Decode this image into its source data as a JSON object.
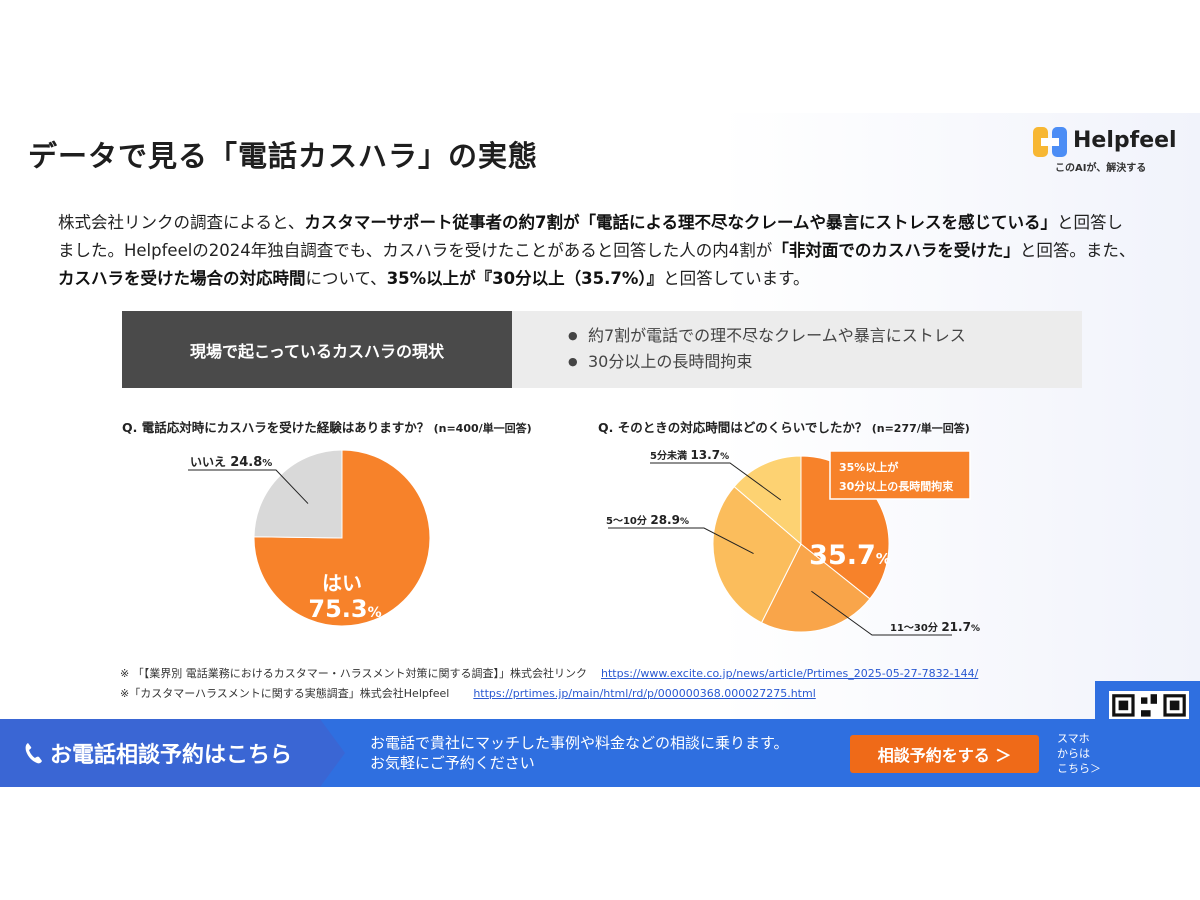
{
  "title": "データで見る「電話カスハラ」の実態",
  "logo": {
    "name": "Helpfeel",
    "tagline": "このAIが、解決する"
  },
  "intro": [
    {
      "text": "株式会社リンクの調査によると、",
      "bold": false
    },
    {
      "text": "カスタマーサポート従事者の約7割が「電話による理不尽なクレームや暴言にストレスを感じている」",
      "bold": true
    },
    {
      "text": "と回答しました。Helpfeelの2024年独自調査でも、カスハラを受けたことがあると回答した人の内4割が",
      "bold": false
    },
    {
      "text": "「非対面でのカスハラを受けた」",
      "bold": true
    },
    {
      "text": "と回答。また、",
      "bold": false
    },
    {
      "text": "カスハラを受けた場合の対応時間",
      "bold": true
    },
    {
      "text": "について、",
      "bold": false
    },
    {
      "text": "35%以上が『30分以上（35.7%）』",
      "bold": true
    },
    {
      "text": "と回答しています。",
      "bold": false
    }
  ],
  "status": {
    "label": "現場で起こっているカスハラの現状",
    "items": [
      "約7割が電話での理不尽なクレームや暴言にストレス",
      "30分以上の長時間拘束"
    ]
  },
  "questions": {
    "q1": {
      "text": "Q. 電話応対時にカスハラを受けた経験はありますか？",
      "n": "(n=400/単一回答)"
    },
    "q2": {
      "text": "Q. そのときの対応時間はどのくらいでしたか？",
      "n": "(n=277/単一回答)"
    }
  },
  "chart_data": [
    {
      "type": "pie",
      "slices": [
        {
          "label": "はい",
          "value": 75.3,
          "color": "#f7822a"
        },
        {
          "label": "いいえ",
          "value": 24.8,
          "color": "#d9d9d9"
        }
      ]
    },
    {
      "type": "pie",
      "slices": [
        {
          "label": "",
          "value": 35.7,
          "color": "#f7822a"
        },
        {
          "label": "11～30分",
          "value": 21.7,
          "color": "#f9a54a"
        },
        {
          "label": "5～10分",
          "value": 28.9,
          "color": "#fbbd5c"
        },
        {
          "label": "5分未満",
          "value": 13.7,
          "color": "#fdd272"
        }
      ],
      "callout": [
        "35%以上が",
        "30分以上の長時間拘束"
      ]
    }
  ],
  "notes": [
    {
      "text": "※ 「【業界別 電話業務におけるカスタマー・ハラスメント対策に関する調査】」株式会社リンク",
      "url": "https://www.excite.co.jp/news/article/Prtimes_2025-05-27-7832-144/"
    },
    {
      "text": "※「カスタマーハラスメントに関する実態調査」株式会社Helpfeel",
      "url": "https://prtimes.jp/main/html/rd/p/000000368.000027275.html"
    }
  ],
  "banner": {
    "title": "お電話相談予約はこちら",
    "text1": "お電話で貴社にマッチした事例や料金などの相談に乗ります。",
    "text2": "お気軽にご予約ください",
    "cta": "相談予約をする ＞",
    "sumaho": [
      "スマホ",
      "からは",
      "こちら＞"
    ]
  }
}
